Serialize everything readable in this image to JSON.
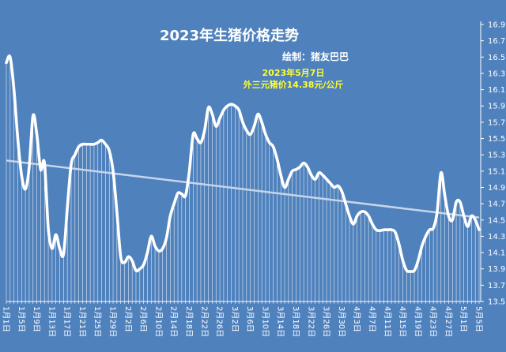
{
  "title": "2023年生猪价格走势",
  "credit": "绘制：猪友巴巴",
  "annotation": {
    "date": "2023年5月7日",
    "text": "外三元猪价14.38元/公斤"
  },
  "colors": {
    "background": "#4f81bd",
    "line": "#ffffff",
    "trend": "#c6d6ea",
    "annotation": "#ffff33",
    "title": "#ffffff"
  },
  "chart_data": {
    "type": "line",
    "title": "2023年生猪价格走势",
    "y_axis_position": "right",
    "ylim": [
      13.5,
      16.9
    ],
    "y_ticks": [
      13.5,
      13.7,
      13.9,
      14.1,
      14.3,
      14.5,
      14.7,
      14.9,
      15.1,
      15.3,
      15.5,
      15.7,
      15.9,
      16.1,
      16.3,
      16.5,
      16.7,
      16.9
    ],
    "x_tick_labels": [
      "1月1日",
      "1月5日",
      "1月9日",
      "1月13日",
      "1月17日",
      "1月21日",
      "1月25日",
      "1月29日",
      "2月2日",
      "2月6日",
      "2月10日",
      "2月14日",
      "2月18日",
      "2月22日",
      "2月26日",
      "3月2日",
      "3月6日",
      "3月10日",
      "3月14日",
      "3月18日",
      "3月22日",
      "3月26日",
      "3月30日",
      "4月3日",
      "4月7日",
      "4月11日",
      "4月15日",
      "4月19日",
      "4月23日",
      "4月27日",
      "5月1日",
      "5月5日"
    ],
    "grid": false,
    "drop_lines": true,
    "series": [
      {
        "values": [
          16.43,
          16.5,
          16.1,
          15.5,
          15.05,
          14.88,
          15.15,
          15.78,
          15.55,
          15.12,
          15.2,
          14.4,
          14.15,
          14.32,
          14.15,
          14.08,
          14.65,
          15.18,
          15.3,
          15.4,
          15.43,
          15.43,
          15.43,
          15.43,
          15.45,
          15.48,
          15.43,
          15.35,
          15.1,
          14.6,
          14.05,
          13.98,
          14.05,
          14.0,
          13.88,
          13.9,
          13.95,
          14.1,
          14.3,
          14.18,
          14.12,
          14.15,
          14.28,
          14.55,
          14.7,
          14.83,
          14.82,
          14.8,
          15.1,
          15.55,
          15.5,
          15.45,
          15.6,
          15.88,
          15.8,
          15.65,
          15.75,
          15.85,
          15.9,
          15.92,
          15.9,
          15.85,
          15.7,
          15.6,
          15.55,
          15.65,
          15.8,
          15.7,
          15.55,
          15.45,
          15.4,
          15.25,
          15.05,
          14.9,
          15.0,
          15.1,
          15.12,
          15.15,
          15.2,
          15.15,
          15.05,
          15.0,
          15.08,
          15.05,
          15.0,
          14.95,
          14.9,
          14.92,
          14.85,
          14.7,
          14.55,
          14.45,
          14.55,
          14.6,
          14.6,
          14.55,
          14.45,
          14.38,
          14.37,
          14.38,
          14.38,
          14.38,
          14.35,
          14.2,
          14.0,
          13.88,
          13.87,
          13.88,
          14.0,
          14.18,
          14.3,
          14.38,
          14.4,
          14.6,
          15.08,
          14.8,
          14.55,
          14.5,
          14.72,
          14.72,
          14.55,
          14.42,
          14.55,
          14.5,
          14.38
        ]
      },
      {
        "name": "trend",
        "type": "linear-trend",
        "start": 15.23,
        "end": 14.53
      }
    ]
  }
}
